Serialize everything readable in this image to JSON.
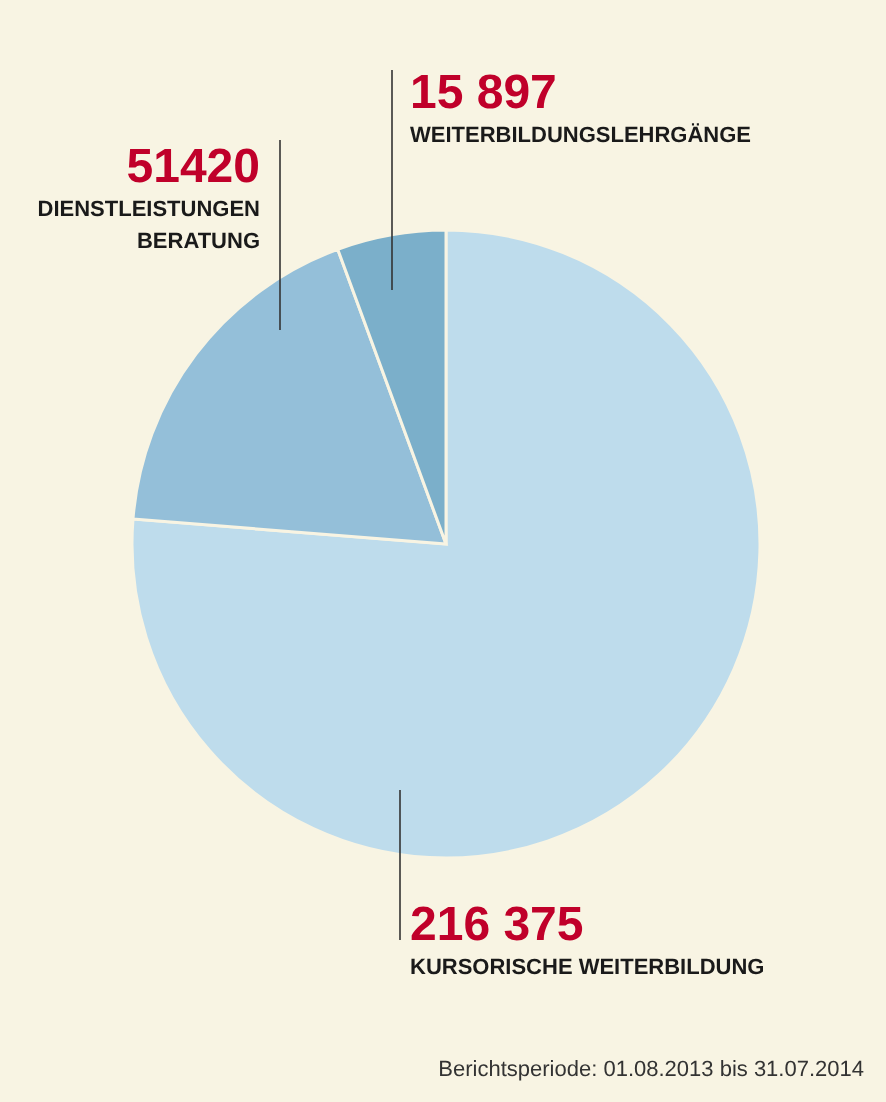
{
  "chart_data": {
    "type": "pie",
    "categories": [
      "KURSORISCHE WEITERBILDUNG",
      "DIENSTLEISTUNGEN\nBERATUNG",
      "WEITERBILDUNGSLEHRGÄNGE"
    ],
    "values": [
      216375,
      51420,
      15897
    ],
    "value_labels": [
      "216 375",
      "51420",
      "15 897"
    ],
    "colors": [
      "#bedcec",
      "#94bfd9",
      "#7bafca"
    ],
    "annotations": [
      "Berichtsperiode: 01.08.2013 bis 31.07.2014"
    ]
  }
}
